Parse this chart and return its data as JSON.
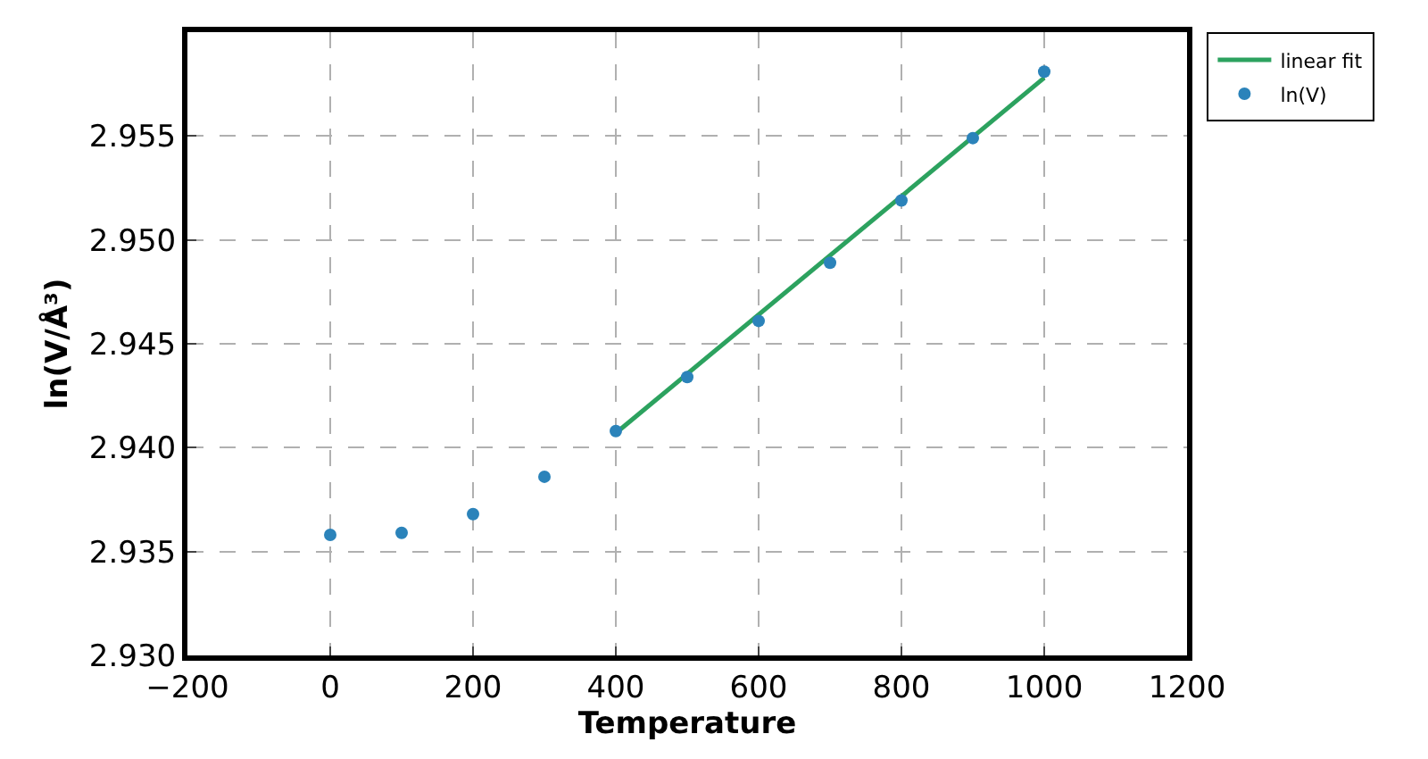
{
  "chart_data": {
    "type": "scatter",
    "xlabel": "Temperature",
    "ylabel": "ln(V/Å³)",
    "xlim": [
      -200,
      1200
    ],
    "xticks": [
      -200,
      0,
      200,
      400,
      600,
      800,
      1000,
      1200
    ],
    "ylim": [
      2.93,
      2.96
    ],
    "yticks": [
      {
        "value": 2.93,
        "label": "2.930"
      },
      2.935,
      {
        "value": 2.94,
        "label": "2.940"
      },
      2.945,
      {
        "value": 2.95,
        "label": "2.950"
      },
      2.955
    ],
    "grid": true,
    "legend": "top right",
    "series": [
      {
        "name": "linear fit",
        "type": "line",
        "color": "#2ca25f",
        "x": [
          400,
          1000
        ],
        "values": [
          2.9407,
          2.9578
        ],
        "line_style": "solid"
      },
      {
        "name": "ln(V)",
        "color": "#2b83ba",
        "x": [
          0,
          100,
          200,
          300,
          400,
          500,
          600,
          700,
          800,
          900,
          1000
        ],
        "values": [
          2.9358,
          2.9359,
          2.9368,
          2.9386,
          2.9408,
          2.9434,
          2.9461,
          2.9489,
          2.9519,
          2.9549,
          2.9581
        ],
        "marker": "circle"
      }
    ]
  }
}
